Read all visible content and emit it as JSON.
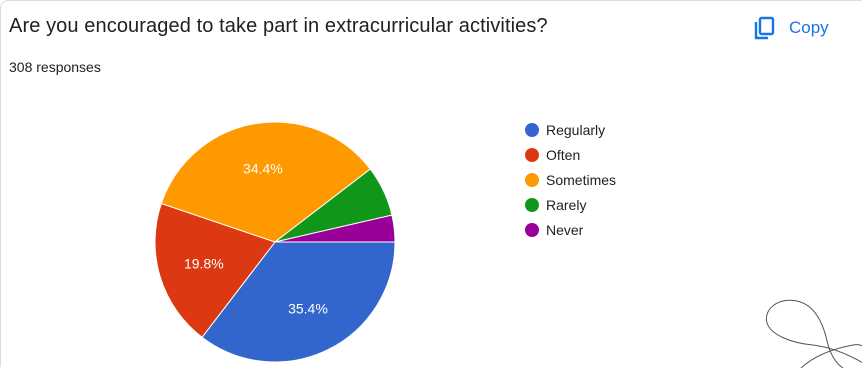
{
  "question": {
    "title": "Are you encouraged to take part in extracurricular activities?",
    "responses": "308 responses",
    "copy_label": "Copy",
    "copy_icon": "copy-icon"
  },
  "colors": {
    "accent": "#1a73e8"
  },
  "chart_data": {
    "type": "pie",
    "title": "",
    "legend_position": "right",
    "slices": [
      {
        "label": "Regularly",
        "value": 35.4,
        "display": "35.4%",
        "color": "#3366cc",
        "show_label": true
      },
      {
        "label": "Often",
        "value": 19.8,
        "display": "19.8%",
        "color": "#dc3912",
        "show_label": true
      },
      {
        "label": "Sometimes",
        "value": 34.4,
        "display": "34.4%",
        "color": "#ff9900",
        "show_label": true
      },
      {
        "label": "Rarely",
        "value": 6.8,
        "display": "",
        "color": "#109618",
        "show_label": false
      },
      {
        "label": "Never",
        "value": 3.6,
        "display": "",
        "color": "#990099",
        "show_label": false
      }
    ]
  }
}
